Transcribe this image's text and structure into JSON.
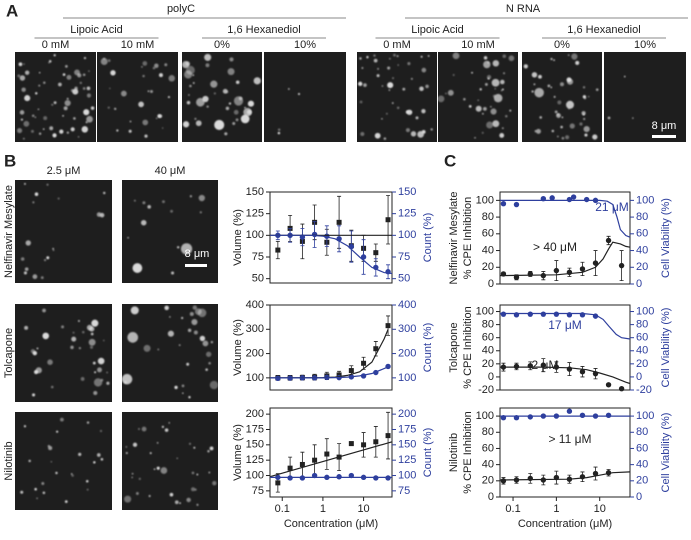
{
  "figure": {
    "panels": [
      "A",
      "B",
      "C"
    ]
  },
  "panel_a": {
    "groups": [
      {
        "title": "polyC",
        "treatments": [
          {
            "name": "Lipoic Acid",
            "conditions": [
              "0 mM",
              "10 mM"
            ]
          },
          {
            "name": "1,6 Hexanediol",
            "conditions": [
              "0%",
              "10%"
            ]
          }
        ]
      },
      {
        "title": "N RNA",
        "treatments": [
          {
            "name": "Lipoic Acid",
            "conditions": [
              "0 mM",
              "10 mM"
            ]
          },
          {
            "name": "1,6 Hexanediol",
            "conditions": [
              "0%",
              "10%"
            ]
          }
        ]
      }
    ],
    "scale_bar": "8 μm"
  },
  "panel_b": {
    "columns": [
      "2.5 μM",
      "40 μM"
    ],
    "rows": [
      "Nelfinavir Mesylate",
      "Tolcapone",
      "Nilotinib"
    ],
    "scale_bar": "8 μm"
  },
  "chart_data": [
    {
      "type": "scatter",
      "ylabel": "Volume (%)",
      "y2label": "Count (%)",
      "log_x": true,
      "xlim": [
        0.05,
        50
      ],
      "ylim": [
        45,
        150
      ],
      "yticks": [
        50,
        75,
        100,
        125,
        150
      ],
      "y2lim": [
        45,
        150
      ],
      "y2ticks": [
        50,
        75,
        100,
        125,
        150
      ],
      "series": [
        {
          "color": "#222222",
          "marker": "square",
          "x": [
            0.078,
            0.156,
            0.313,
            0.625,
            1.25,
            2.5,
            5,
            10,
            20,
            40
          ],
          "values": [
            83,
            108,
            93,
            115,
            92,
            115,
            88,
            85,
            80,
            118
          ],
          "errors": [
            10,
            15,
            20,
            20,
            15,
            30,
            18,
            15,
            10,
            28
          ]
        },
        {
          "color": "#2e3f9e",
          "marker": "circle",
          "axis": "y2",
          "x": [
            0.078,
            0.156,
            0.313,
            0.625,
            1.25,
            2.5,
            5,
            10,
            20,
            40
          ],
          "values": [
            100,
            100,
            98,
            101,
            99,
            96,
            87,
            75,
            63,
            58
          ],
          "errors": [
            5,
            8,
            10,
            15,
            12,
            15,
            18,
            20,
            10,
            8
          ]
        },
        {
          "color": "#222222",
          "fit": true,
          "x": [
            0.05,
            50
          ],
          "values": [
            100,
            100
          ]
        },
        {
          "color": "#2e3f9e",
          "fit": true,
          "axis": "y2",
          "x": [
            0.05,
            0.5,
            1,
            2,
            4,
            8,
            16,
            32,
            50
          ],
          "values": [
            100,
            100,
            99,
            96,
            88,
            75,
            63,
            57,
            56
          ]
        }
      ]
    },
    {
      "type": "scatter",
      "ylabel": "Volume (%)",
      "y2label": "Count (%)",
      "log_x": true,
      "xlim": [
        0.05,
        50
      ],
      "ylim": [
        50,
        400
      ],
      "yticks": [
        100,
        200,
        300,
        400
      ],
      "y2lim": [
        50,
        400
      ],
      "y2ticks": [
        100,
        200,
        300,
        400
      ],
      "series": [
        {
          "color": "#222222",
          "marker": "square",
          "x": [
            0.078,
            0.156,
            0.313,
            0.625,
            1.25,
            2.5,
            5,
            10,
            20,
            40
          ],
          "values": [
            100,
            100,
            101,
            103,
            108,
            112,
            130,
            160,
            220,
            315
          ],
          "errors": [
            10,
            10,
            10,
            12,
            15,
            15,
            20,
            25,
            30,
            40
          ]
        },
        {
          "color": "#2e3f9e",
          "marker": "circle",
          "axis": "y2",
          "x": [
            0.078,
            0.156,
            0.313,
            0.625,
            1.25,
            2.5,
            5,
            10,
            20,
            40
          ],
          "values": [
            98,
            99,
            100,
            100,
            102,
            101,
            104,
            108,
            122,
            147
          ]
        },
        {
          "color": "#222222",
          "fit": true,
          "x": [
            0.05,
            1,
            2,
            4,
            8,
            16,
            32,
            40
          ],
          "values": [
            100,
            101,
            103,
            110,
            125,
            165,
            260,
            300
          ]
        },
        {
          "color": "#2e3f9e",
          "fit": true,
          "axis": "y2",
          "x": [
            0.05,
            1,
            2,
            4,
            8,
            16,
            32,
            40
          ],
          "values": [
            100,
            100,
            101,
            103,
            108,
            118,
            138,
            145
          ]
        }
      ]
    },
    {
      "type": "scatter",
      "ylabel": "Volume (%)",
      "y2label": "Count (%)",
      "xlabel": "Concentration (μM)",
      "log_x": true,
      "xlim": [
        0.05,
        50
      ],
      "xticks": [
        0.1,
        1,
        10
      ],
      "ylim": [
        65,
        210
      ],
      "yticks": [
        75,
        100,
        125,
        150,
        175,
        200
      ],
      "y2lim": [
        65,
        210
      ],
      "y2ticks": [
        75,
        100,
        125,
        150,
        175,
        200
      ],
      "series": [
        {
          "color": "#222222",
          "marker": "square",
          "x": [
            0.078,
            0.156,
            0.313,
            0.625,
            1.25,
            2.5,
            5,
            10,
            20,
            40
          ],
          "values": [
            88,
            112,
            118,
            125,
            135,
            130,
            152,
            150,
            155,
            165
          ],
          "errors": [
            15,
            18,
            20,
            25,
            25,
            22,
            3,
            20,
            25,
            38
          ]
        },
        {
          "color": "#2e3f9e",
          "marker": "circle",
          "axis": "y2",
          "x": [
            0.078,
            0.156,
            0.313,
            0.625,
            1.25,
            2.5,
            5,
            10,
            20,
            40
          ],
          "values": [
            97,
            96,
            96,
            100,
            97,
            98,
            100,
            97,
            96,
            96
          ]
        },
        {
          "color": "#222222",
          "fit": true,
          "x": [
            0.05,
            50
          ],
          "values": [
            98,
            155
          ]
        },
        {
          "color": "#2e3f9e",
          "fit": true,
          "axis": "y2",
          "x": [
            0.05,
            50
          ],
          "values": [
            97,
            97
          ]
        }
      ]
    },
    {
      "type": "scatter",
      "title": "Nelfinavir Mesylate",
      "ylabel": "% CPE Inhibition",
      "y2label": "Cell Viability (%)",
      "log_x": true,
      "xlim": [
        0.05,
        50
      ],
      "ylim": [
        0,
        110
      ],
      "yticks": [
        0,
        20,
        40,
        60,
        80,
        100
      ],
      "y2lim": [
        0,
        110
      ],
      "y2ticks": [
        0,
        20,
        40,
        60,
        80,
        100
      ],
      "annotations": [
        {
          "text": "21 μM",
          "color": "#2e3f9e"
        },
        {
          "text": "> 40 μM",
          "color": "#222222"
        }
      ],
      "series": [
        {
          "color": "#2e3f9e",
          "marker": "circle",
          "axis": "y2",
          "x": [
            0.06,
            0.12,
            0.5,
            0.8,
            2,
            2.5,
            5,
            8
          ],
          "values": [
            96,
            95,
            102,
            103,
            101,
            104,
            101,
            100
          ]
        },
        {
          "color": "#2e3f9e",
          "fit": true,
          "axis": "y2",
          "x": [
            0.05,
            10,
            15,
            20,
            25,
            30,
            40,
            50
          ],
          "values": [
            100,
            100,
            99,
            95,
            80,
            65,
            58,
            56
          ]
        },
        {
          "color": "#222222",
          "marker": "circle",
          "x": [
            0.06,
            0.12,
            0.25,
            0.5,
            1,
            2,
            4,
            8,
            16,
            32
          ],
          "values": [
            12,
            8,
            12,
            10,
            16,
            14,
            18,
            25,
            52,
            22
          ],
          "errors": [
            2,
            3,
            3,
            5,
            12,
            5,
            8,
            15,
            5,
            18
          ]
        },
        {
          "color": "#222222",
          "fit": true,
          "x": [
            0.05,
            1,
            4,
            8,
            12,
            16,
            20,
            30,
            40,
            50
          ],
          "values": [
            10,
            11,
            14,
            20,
            30,
            42,
            50,
            48,
            45,
            44
          ]
        }
      ]
    },
    {
      "type": "scatter",
      "title": "Tolcapone",
      "ylabel": "% CPE Inhibition",
      "y2label": "Cell Viability (%)",
      "log_x": true,
      "xlim": [
        0.05,
        50
      ],
      "ylim": [
        -20,
        110
      ],
      "yticks": [
        -20,
        0,
        20,
        40,
        60,
        80,
        100
      ],
      "y2lim": [
        -20,
        110
      ],
      "y2ticks": [
        -20,
        0,
        20,
        40,
        60,
        80,
        100
      ],
      "annotations": [
        {
          "text": "17 μM",
          "color": "#2e3f9e"
        },
        {
          "text": "2 μM",
          "color": "#222222"
        }
      ],
      "series": [
        {
          "color": "#2e3f9e",
          "marker": "circle",
          "axis": "y2",
          "x": [
            0.06,
            0.12,
            0.25,
            0.5,
            1,
            2,
            4,
            8
          ],
          "values": [
            96,
            95,
            96,
            96,
            96,
            95,
            95,
            93
          ]
        },
        {
          "color": "#2e3f9e",
          "fit": true,
          "axis": "y2",
          "x": [
            0.05,
            4,
            8,
            12,
            16,
            24,
            32,
            50
          ],
          "values": [
            97,
            97,
            95,
            88,
            78,
            65,
            60,
            58
          ]
        },
        {
          "color": "#222222",
          "marker": "circle",
          "x": [
            0.06,
            0.12,
            0.25,
            0.5,
            1,
            2,
            4,
            8,
            16,
            32
          ],
          "values": [
            15,
            16,
            17,
            18,
            15,
            12,
            8,
            5,
            -12,
            -18
          ],
          "errors": [
            6,
            5,
            6,
            10,
            8,
            10,
            8,
            8,
            2,
            2
          ]
        },
        {
          "color": "#222222",
          "fit": true,
          "x": [
            0.05,
            0.5,
            2,
            5,
            10,
            20,
            40,
            50
          ],
          "values": [
            15,
            15,
            14,
            11,
            6,
            0,
            -8,
            -10
          ]
        }
      ]
    },
    {
      "type": "scatter",
      "title": "Nilotinib",
      "ylabel": "% CPE Inhibition",
      "y2label": "Cell Viability (%)",
      "xlabel": "Concentration (μM)",
      "log_x": true,
      "xlim": [
        0.05,
        50
      ],
      "xticks": [
        0.1,
        1,
        10
      ],
      "ylim": [
        0,
        110
      ],
      "yticks": [
        0,
        20,
        40,
        60,
        80,
        100
      ],
      "y2lim": [
        0,
        110
      ],
      "y2ticks": [
        0,
        20,
        40,
        60,
        80,
        100
      ],
      "annotations": [
        {
          "text": "> 11 μM",
          "color": "#222222"
        }
      ],
      "series": [
        {
          "color": "#2e3f9e",
          "marker": "circle",
          "axis": "y2",
          "x": [
            0.06,
            0.12,
            0.25,
            0.5,
            1,
            2,
            4,
            8,
            16
          ],
          "values": [
            98,
            98,
            99,
            100,
            100,
            106,
            101,
            100,
            101
          ]
        },
        {
          "color": "#2e3f9e",
          "fit": true,
          "axis": "y2",
          "x": [
            0.05,
            50
          ],
          "values": [
            100,
            100
          ]
        },
        {
          "color": "#222222",
          "marker": "circle",
          "x": [
            0.06,
            0.12,
            0.25,
            0.5,
            1,
            2,
            4,
            8,
            16
          ],
          "values": [
            20,
            21,
            23,
            21,
            24,
            22,
            25,
            29,
            30
          ],
          "errors": [
            4,
            4,
            6,
            6,
            8,
            5,
            6,
            8,
            4
          ]
        },
        {
          "color": "#222222",
          "fit": true,
          "x": [
            0.05,
            2,
            5,
            10,
            20,
            50
          ],
          "values": [
            21,
            22,
            24,
            27,
            30,
            31
          ]
        }
      ]
    }
  ]
}
